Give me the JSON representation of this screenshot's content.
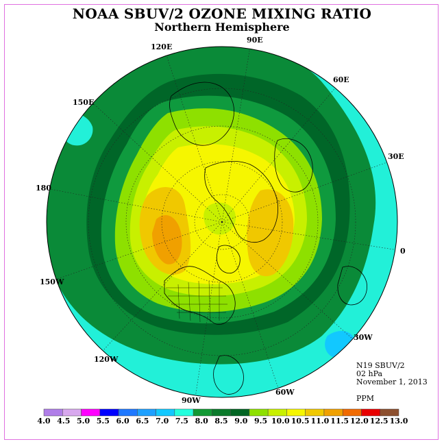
{
  "title": "NOAA SBUV/2 OZONE MIXING RATIO",
  "subtitle": "Northern Hemisphere",
  "longitude_labels": [
    "120E",
    "90E",
    "60E",
    "150E",
    "30E",
    "180",
    "0",
    "150W",
    "30W",
    "120W",
    "90W",
    "60W"
  ],
  "info": {
    "satellite": "N19 SBUV/2",
    "pressure": "02 hPa",
    "date": "November 1, 2013",
    "unit": "PPM"
  },
  "colorbar": {
    "ticks": [
      "4.0",
      "4.5",
      "5.0",
      "5.5",
      "6.0",
      "6.5",
      "7.0",
      "7.5",
      "8.0",
      "8.5",
      "9.0",
      "9.5",
      "10.0",
      "10.5",
      "11.0",
      "11.5",
      "12.0",
      "12.5",
      "13.0"
    ],
    "colors": [
      "#b07ee8",
      "#d8a8ee",
      "#ff00ff",
      "#0000ff",
      "#1e78ff",
      "#1ea0ff",
      "#12c8ff",
      "#22ffdd",
      "#119933",
      "#0a7a2a",
      "#006422",
      "#8ee000",
      "#c8f000",
      "#f6f600",
      "#f0c800",
      "#f0a000",
      "#f06a00",
      "#e80000",
      "#8c4f2e"
    ]
  },
  "colors": {
    "cyan": "#22f0d8",
    "dark_green": "#0a8a38",
    "deep_green": "#006628",
    "light_green": "#8ee000",
    "yellow_green": "#c8f000",
    "yellow": "#f6f600",
    "gold": "#f0c800",
    "orange": "#f0a000"
  }
}
